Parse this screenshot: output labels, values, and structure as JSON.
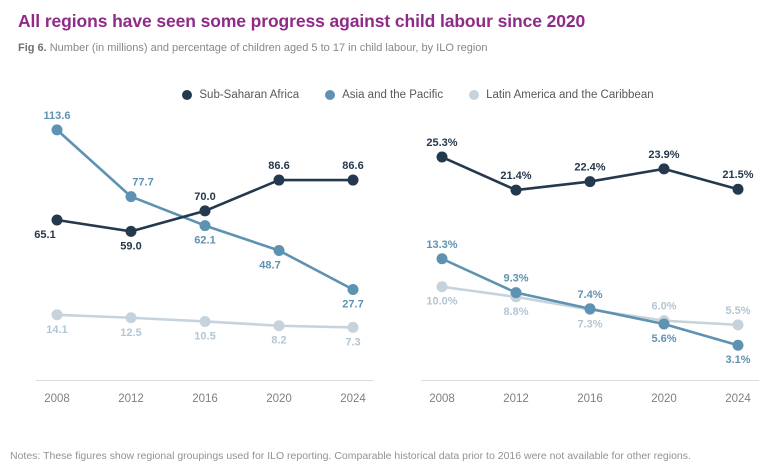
{
  "header": {
    "title": "All regions have seen some progress against child labour since 2020",
    "fig_label": "Fig 6.",
    "subtitle": "Number (in millions) and percentage of children aged 5 to 17 in child labour, by ILO region"
  },
  "legend": {
    "items": [
      {
        "label": "Sub-Saharan Africa",
        "color": "#24394d"
      },
      {
        "label": "Asia and the Pacific",
        "color": "#5e92b2"
      },
      {
        "label": "Latin America and the Caribbean",
        "color": "#c6d3dc"
      }
    ]
  },
  "notes": "Notes: These figures show regional groupings used for ILO reporting. Comparable historical data prior to 2016 were not available for other regions.",
  "colors": {
    "title_accent": "#8f2b87",
    "axis_line": "#dcdcdc",
    "tick_label": "#7d7f82",
    "sub_saharan_africa": "#24394d",
    "asia_pacific": "#5e92b2",
    "latin_america": "#c6d3dc",
    "latin_america_label": "#b2c6d3"
  },
  "chart_data": [
    {
      "id": "millions",
      "type": "line",
      "categories": [
        "2008",
        "2012",
        "2016",
        "2020",
        "2024"
      ],
      "series": [
        {
          "name": "Sub-Saharan Africa",
          "color": "#24394d",
          "values": [
            65.1,
            59.0,
            70.0,
            86.6,
            86.6
          ],
          "labels": [
            "65.1",
            "59.0",
            "70.0",
            "86.6",
            "86.6"
          ],
          "label_positions": [
            "below",
            "below",
            "above",
            "above",
            "above"
          ],
          "label_dx": [
            -12,
            0,
            0,
            0,
            0
          ]
        },
        {
          "name": "Asia and the Pacific",
          "color": "#5e92b2",
          "values": [
            113.6,
            77.7,
            62.1,
            48.7,
            27.7
          ],
          "labels": [
            "113.6",
            "77.7",
            "62.1",
            "48.7",
            "27.7"
          ],
          "label_positions": [
            "above",
            "above",
            "below",
            "below",
            "below"
          ],
          "label_dx": [
            0,
            12,
            0,
            -9,
            0
          ]
        },
        {
          "name": "Latin America and the Caribbean",
          "color": "#c6d3dc",
          "label_color": "#b2c6d3",
          "values": [
            14.1,
            12.5,
            10.5,
            8.2,
            7.3
          ],
          "labels": [
            "14.1",
            "12.5",
            "10.5",
            "8.2",
            "7.3"
          ],
          "label_positions": [
            "below",
            "below",
            "below",
            "below",
            "below"
          ],
          "label_dx": [
            0,
            0,
            0,
            0,
            0
          ]
        }
      ],
      "xlabel": "",
      "ylabel": "",
      "ylim": [
        -21,
        120
      ],
      "grid": false,
      "legend_position": "top"
    },
    {
      "id": "percentage",
      "type": "line",
      "categories": [
        "2008",
        "2012",
        "2016",
        "2020",
        "2024"
      ],
      "series": [
        {
          "name": "Sub-Saharan Africa",
          "color": "#24394d",
          "values": [
            25.3,
            21.4,
            22.4,
            23.9,
            21.5
          ],
          "labels": [
            "25.3%",
            "21.4%",
            "22.4%",
            "23.9%",
            "21.5%"
          ],
          "label_positions": [
            "above",
            "above",
            "above",
            "above",
            "above"
          ],
          "label_dx": [
            0,
            0,
            0,
            0,
            0
          ]
        },
        {
          "name": "Asia and the Pacific",
          "color": "#5e92b2",
          "values": [
            13.3,
            9.3,
            7.4,
            5.6,
            3.1
          ],
          "labels": [
            "13.3%",
            "9.3%",
            "7.4%",
            "5.6%",
            "3.1%"
          ],
          "label_positions": [
            "above",
            "above",
            "above",
            "below",
            "below"
          ],
          "label_dx": [
            0,
            0,
            0,
            0,
            0
          ]
        },
        {
          "name": "Latin America and the Caribbean",
          "color": "#c6d3dc",
          "label_color": "#b2c6d3",
          "values": [
            10.0,
            8.8,
            7.3,
            6.0,
            5.5
          ],
          "labels": [
            "10.0%",
            "8.8%",
            "7.3%",
            "6.0%",
            "5.5%"
          ],
          "label_positions": [
            "below",
            "below",
            "below",
            "above",
            "above"
          ],
          "label_dx": [
            0,
            0,
            0,
            0,
            0
          ]
        }
      ],
      "xlabel": "",
      "ylabel": "",
      "ylim": [
        -1.0,
        29.9
      ],
      "grid": false,
      "legend_position": "top"
    }
  ]
}
